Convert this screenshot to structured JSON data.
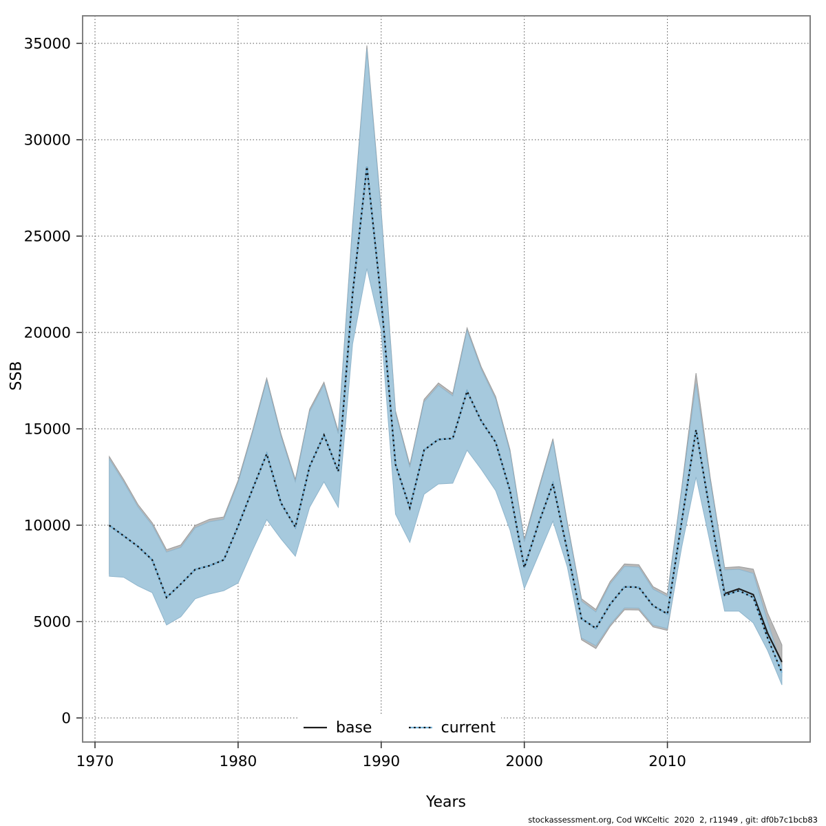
{
  "figure": {
    "y_axis_title": "SSB",
    "x_axis_title": "Years",
    "caption": "stockassessment.org, Cod WKCeltic  2020  2, r11949 , git: df0b7c1bcb83",
    "legend": {
      "base_label": "base",
      "current_label": "current"
    }
  },
  "axes": {
    "x_ticks": [
      1970,
      1980,
      1990,
      2000,
      2010
    ],
    "y_ticks": [
      0,
      5000,
      10000,
      15000,
      20000,
      25000,
      30000,
      35000
    ],
    "grid": "dotted both axes",
    "box_color": "#808080"
  },
  "colors": {
    "base_line": "#1c1c1c",
    "base_band": "#b9b9b9",
    "base_band_edge": "#9a9a9a",
    "current_line_blue": "#79b7dd",
    "current_dot_overlay": "#101010",
    "current_band": "#a6c9dd",
    "current_band_edge": "#8fb5cc",
    "grid_color": "#4d4d4d",
    "tick_label_color": "#000000"
  },
  "chart_data": {
    "type": "line",
    "title": "",
    "xlabel": "Years",
    "ylabel": "SSB",
    "x_range_box": [
      1969.1,
      2020.0
    ],
    "ylim_box": [
      -1250,
      36430
    ],
    "legend_position": "bottom center inside",
    "years": [
      1971,
      1972,
      1973,
      1974,
      1975,
      1976,
      1977,
      1978,
      1979,
      1980,
      1981,
      1982,
      1983,
      1984,
      1985,
      1986,
      1987,
      1988,
      1989,
      1990,
      1991,
      1992,
      1993,
      1994,
      1995,
      1996,
      1997,
      1998,
      1999,
      2000,
      2001,
      2002,
      2003,
      2004,
      2005,
      2006,
      2007,
      2008,
      2009,
      2010,
      2011,
      2012,
      2013,
      2014,
      2015,
      2016,
      2017,
      2018
    ],
    "series": [
      {
        "name": "base",
        "line_style": "solid black",
        "values": [
          9990,
          9450,
          8900,
          8200,
          6250,
          6950,
          7700,
          7900,
          8200,
          9950,
          11850,
          13700,
          11150,
          9900,
          13050,
          14680,
          12790,
          22000,
          28600,
          21700,
          13150,
          10900,
          13900,
          14450,
          14500,
          16950,
          15400,
          14300,
          11800,
          7800,
          10100,
          12150,
          8700,
          5150,
          4650,
          5900,
          6800,
          6780,
          5820,
          5400,
          10200,
          14950,
          10600,
          6450,
          6700,
          6400,
          4400,
          2900
        ],
        "ci_lo": [
          7470,
          7420,
          6970,
          6620,
          4940,
          5370,
          6300,
          6550,
          6720,
          7120,
          8800,
          10410,
          9410,
          8510,
          11050,
          12370,
          11050,
          19520,
          23440,
          20220,
          10690,
          9230,
          11730,
          12260,
          12300,
          14010,
          13010,
          11910,
          9870,
          6830,
          8580,
          10330,
          7970,
          4050,
          3600,
          4750,
          5610,
          5600,
          4720,
          4540,
          8980,
          12650,
          9160,
          5700,
          5700,
          5150,
          3750,
          2150
        ],
        "ci_hi": [
          13560,
          12380,
          11080,
          10130,
          8730,
          8980,
          9990,
          10310,
          10430,
          12330,
          14880,
          17630,
          14730,
          12380,
          16020,
          17420,
          14880,
          25630,
          34890,
          26330,
          15930,
          13130,
          16530,
          17380,
          16840,
          20240,
          18200,
          16670,
          13920,
          9270,
          11920,
          14490,
          10180,
          6180,
          5630,
          7080,
          7990,
          7950,
          6810,
          6420,
          11950,
          17890,
          12450,
          7800,
          7850,
          7720,
          5450,
          3790
        ]
      },
      {
        "name": "current",
        "line_style": "dotted blue",
        "values": [
          9990,
          9450,
          8900,
          8200,
          6250,
          6950,
          7700,
          7900,
          8200,
          9950,
          11850,
          13700,
          11150,
          9900,
          13050,
          14680,
          12790,
          22000,
          28600,
          21700,
          13150,
          10900,
          13900,
          14450,
          14500,
          16950,
          15400,
          14300,
          11800,
          7800,
          10100,
          12150,
          8700,
          5150,
          4650,
          5900,
          6800,
          6780,
          5820,
          5400,
          10200,
          14950,
          10600,
          6360,
          6600,
          6250,
          4150,
          2350
        ],
        "ci_lo": [
          7350,
          7300,
          6850,
          6500,
          4820,
          5250,
          6180,
          6430,
          6600,
          7000,
          8680,
          10290,
          9290,
          8390,
          10930,
          12250,
          10930,
          19400,
          23320,
          20100,
          10570,
          9110,
          11610,
          12140,
          12180,
          13890,
          12890,
          11790,
          9750,
          6710,
          8460,
          10210,
          7850,
          4150,
          3750,
          4850,
          5710,
          5700,
          4820,
          4640,
          8860,
          12500,
          9040,
          5540,
          5540,
          4930,
          3500,
          1710
        ],
        "ci_hi": [
          13430,
          12250,
          10950,
          10000,
          8600,
          8850,
          9860,
          10180,
          10300,
          12200,
          14750,
          17500,
          14600,
          12250,
          15890,
          17290,
          14750,
          25500,
          34700,
          26200,
          15800,
          13000,
          16400,
          17250,
          16710,
          20110,
          18070,
          16540,
          13790,
          9140,
          11790,
          14360,
          10050,
          6050,
          5500,
          6950,
          7860,
          7820,
          6680,
          6290,
          11820,
          17360,
          12250,
          7680,
          7710,
          7500,
          5000,
          2680
        ]
      }
    ]
  }
}
